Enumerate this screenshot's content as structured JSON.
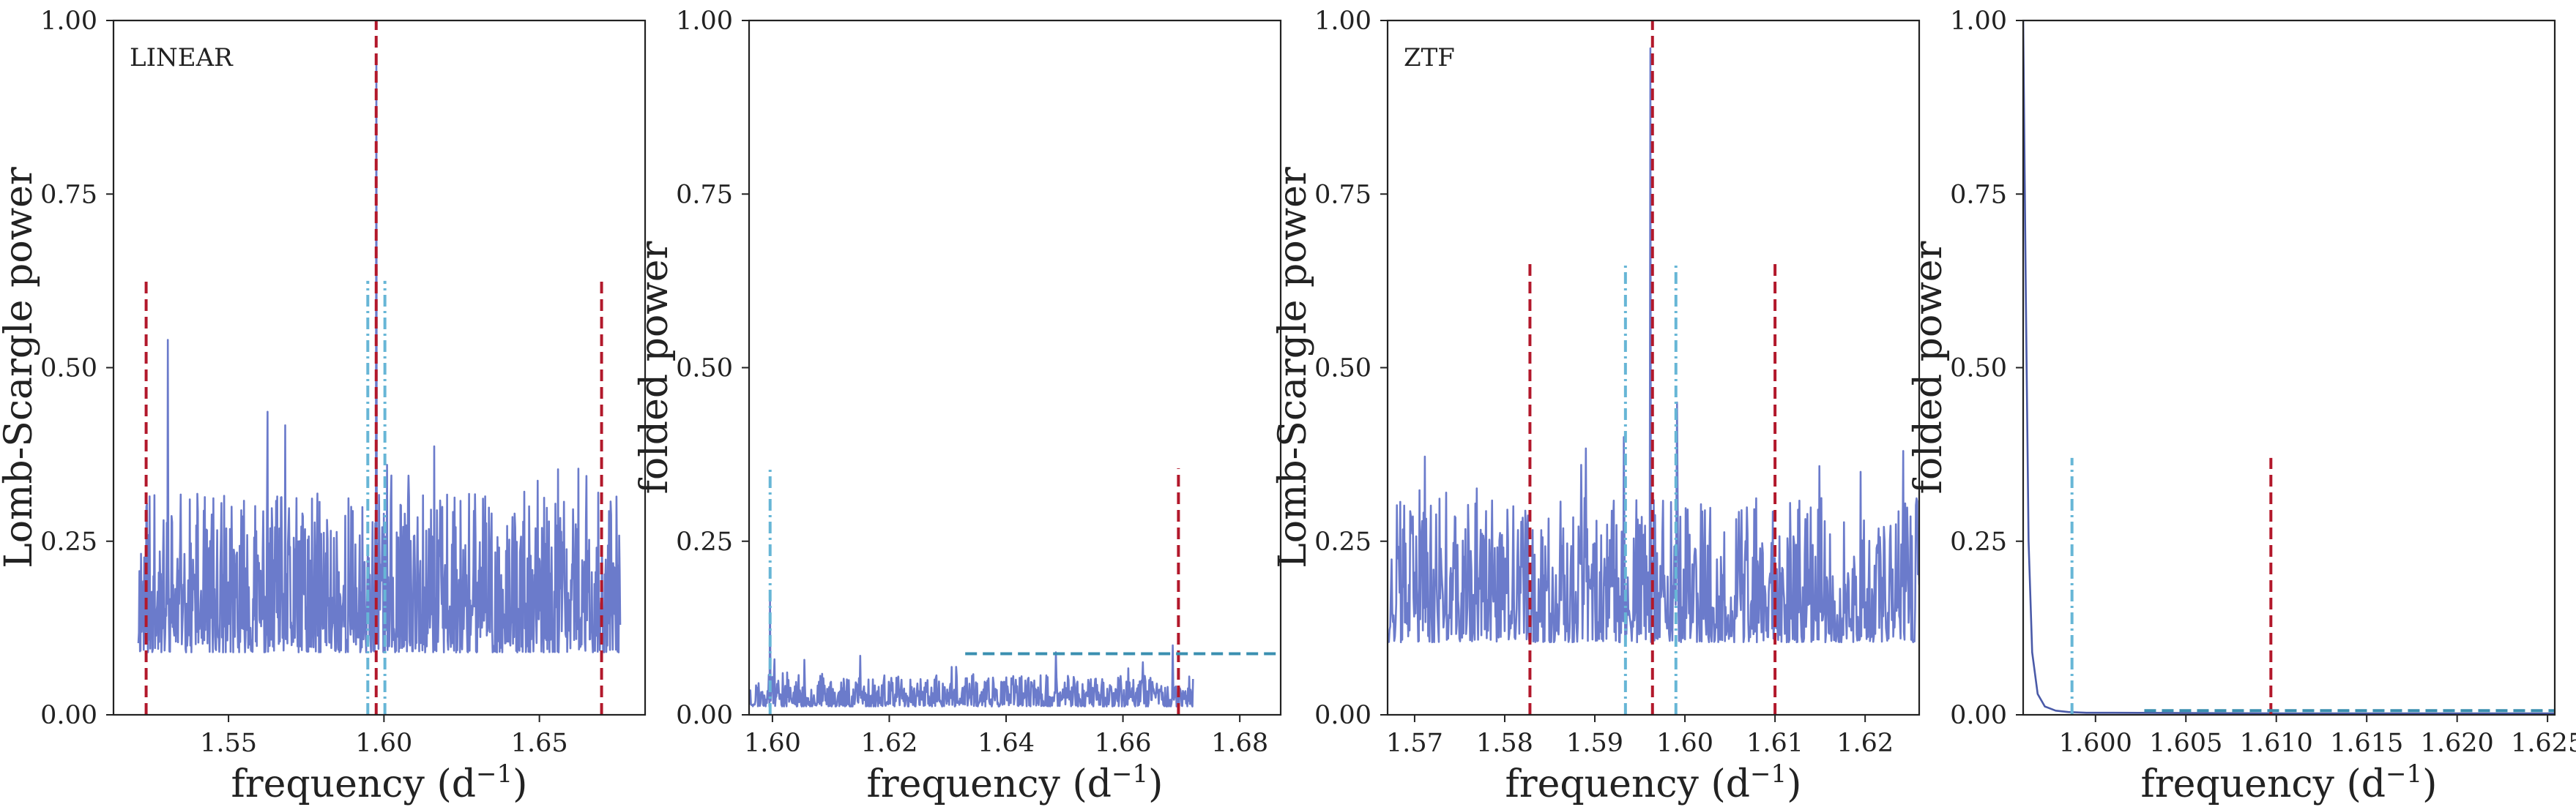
{
  "chart_data": [
    {
      "type": "line",
      "panel_label": "LINEAR",
      "xlabel": "frequency (d",
      "xlabel_sup": "−1",
      "xlabel_end": ")",
      "ylabel": "Lomb-Scargle power",
      "xlim": [
        1.513,
        1.684
      ],
      "ylim": [
        0,
        1
      ],
      "xticks": [
        1.55,
        1.6,
        1.65
      ],
      "xtick_labels": [
        "1.55",
        "1.60",
        "1.65"
      ],
      "yticks": [
        0,
        0.25,
        0.5,
        0.75,
        1.0
      ],
      "ytick_labels": [
        "0.00",
        "0.25",
        "0.50",
        "0.75",
        "1.00"
      ],
      "grid": false,
      "series": [
        {
          "style": "noise",
          "color": "#6b7bcb",
          "x_range": [
            1.521,
            1.676
          ],
          "baseline": 0.14,
          "amplitude": 0.11,
          "n_points": 900,
          "seed": 11,
          "peaks": [
            [
              1.5305,
              0.54
            ],
            [
              1.5975,
              0.95
            ],
            [
              1.5235,
              0.3
            ],
            [
              1.669,
              0.32
            ],
            [
              1.601,
              0.36
            ]
          ]
        }
      ],
      "vlines": [
        {
          "x": 1.5235,
          "y0": 0,
          "y1": 0.625,
          "color": "#b2182b",
          "style": "dashed"
        },
        {
          "x": 1.5975,
          "y0": 0,
          "y1": 1.0,
          "color": "#b2182b",
          "style": "dashed"
        },
        {
          "x": 1.67,
          "y0": 0,
          "y1": 0.625,
          "color": "#b2182b",
          "style": "dashed"
        },
        {
          "x": 1.5948,
          "y0": 0,
          "y1": 0.625,
          "color": "#67b6d6",
          "style": "dashdot"
        },
        {
          "x": 1.6003,
          "y0": 0,
          "y1": 0.625,
          "color": "#67b6d6",
          "style": "dashdot"
        }
      ],
      "hlines": []
    },
    {
      "type": "line",
      "panel_label": "",
      "xlabel": "frequency (d",
      "xlabel_sup": "−1",
      "xlabel_end": ")",
      "ylabel": "folded power",
      "xlim": [
        1.596,
        1.687
      ],
      "ylim": [
        0,
        1
      ],
      "xticks": [
        1.6,
        1.62,
        1.64,
        1.66,
        1.68
      ],
      "xtick_labels": [
        "1.60",
        "1.62",
        "1.64",
        "1.66",
        "1.68"
      ],
      "yticks": [
        0,
        0.25,
        0.5,
        0.75,
        1.0
      ],
      "ytick_labels": [
        "0.00",
        "0.25",
        "0.50",
        "0.75",
        "1.00"
      ],
      "grid": false,
      "series": [
        {
          "style": "noise",
          "color": "#6b7bcb",
          "x_range": [
            1.596,
            1.672
          ],
          "baseline": 0.022,
          "amplitude": 0.022,
          "n_points": 700,
          "seed": 23,
          "peaks": [
            [
              1.5996,
              0.165
            ],
            [
              1.6485,
              0.09
            ],
            [
              1.6685,
              0.1
            ],
            [
              1.615,
              0.085
            ],
            [
              1.6003,
              0.08
            ]
          ]
        }
      ],
      "vlines": [
        {
          "x": 1.5996,
          "y0": 0,
          "y1": 0.355,
          "color": "#67b6d6",
          "style": "dashdot"
        },
        {
          "x": 1.6695,
          "y0": 0,
          "y1": 0.355,
          "color": "#b2182b",
          "style": "dashed"
        }
      ],
      "hlines": [
        {
          "y": 0.088,
          "x0": 1.633,
          "x1": 1.687,
          "color": "#3a8fb0",
          "style": "dashed"
        }
      ]
    },
    {
      "type": "line",
      "panel_label": "ZTF",
      "xlabel": "frequency (d",
      "xlabel_sup": "−1",
      "xlabel_end": ")",
      "ylabel": "Lomb-Scargle power",
      "xlim": [
        1.567,
        1.626
      ],
      "ylim": [
        0,
        1
      ],
      "xticks": [
        1.57,
        1.58,
        1.59,
        1.6,
        1.61,
        1.62
      ],
      "xtick_labels": [
        "1.57",
        "1.58",
        "1.59",
        "1.60",
        "1.61",
        "1.62"
      ],
      "yticks": [
        0,
        0.25,
        0.5,
        0.75,
        1.0
      ],
      "ytick_labels": [
        "0.00",
        "0.25",
        "0.50",
        "0.75",
        "1.00"
      ],
      "grid": false,
      "series": [
        {
          "style": "noise",
          "color": "#6b7bcb",
          "x_range": [
            1.567,
            1.626
          ],
          "baseline": 0.15,
          "amplitude": 0.1,
          "n_points": 800,
          "seed": 37,
          "peaks": [
            [
              1.5962,
              0.96
            ],
            [
              1.5932,
              0.4
            ],
            [
              1.5991,
              0.45
            ],
            [
              1.5885,
              0.36
            ],
            [
              1.6242,
              0.38
            ],
            [
              1.6195,
              0.35
            ],
            [
              1.5735,
              0.32
            ]
          ]
        }
      ],
      "vlines": [
        {
          "x": 1.5828,
          "y0": 0,
          "y1": 0.65,
          "color": "#b2182b",
          "style": "dashed"
        },
        {
          "x": 1.5964,
          "y0": 0,
          "y1": 1.0,
          "color": "#b2182b",
          "style": "dashed"
        },
        {
          "x": 1.61,
          "y0": 0,
          "y1": 0.65,
          "color": "#b2182b",
          "style": "dashed"
        },
        {
          "x": 1.5934,
          "y0": 0,
          "y1": 0.65,
          "color": "#67b6d6",
          "style": "dashdot"
        },
        {
          "x": 1.599,
          "y0": 0,
          "y1": 0.65,
          "color": "#67b6d6",
          "style": "dashdot"
        }
      ],
      "hlines": []
    },
    {
      "type": "line",
      "panel_label": "",
      "xlabel": "frequency (d",
      "xlabel_sup": "−1",
      "xlabel_end": ")",
      "ylabel": "folded power",
      "xlim": [
        1.596,
        1.6254
      ],
      "ylim": [
        0,
        1
      ],
      "xticks": [
        1.6,
        1.605,
        1.61,
        1.615,
        1.62,
        1.625
      ],
      "xtick_labels": [
        "1.600",
        "1.605",
        "1.610",
        "1.615",
        "1.620",
        "1.625"
      ],
      "yticks": [
        0,
        0.25,
        0.5,
        0.75,
        1.0
      ],
      "ytick_labels": [
        "0.00",
        "0.25",
        "0.50",
        "0.75",
        "1.00"
      ],
      "grid": false,
      "series": [
        {
          "style": "decay",
          "color": "#4a5aa8",
          "x": [
            1.596,
            1.59615,
            1.5963,
            1.5965,
            1.5968,
            1.5972,
            1.5978,
            1.5985,
            1.5995,
            1.601,
            1.61,
            1.6254
          ],
          "y": [
            1.0,
            0.6,
            0.25,
            0.09,
            0.03,
            0.012,
            0.006,
            0.004,
            0.003,
            0.003,
            0.002,
            0.002
          ]
        }
      ],
      "vlines": [
        {
          "x": 1.5987,
          "y0": 0,
          "y1": 0.37,
          "color": "#67b6d6",
          "style": "dashdot"
        },
        {
          "x": 1.6097,
          "y0": 0,
          "y1": 0.37,
          "color": "#b2182b",
          "style": "dashed"
        }
      ],
      "hlines": [
        {
          "y": 0.006,
          "x0": 1.6027,
          "x1": 1.6254,
          "color": "#3a8fb0",
          "style": "dashed"
        }
      ]
    }
  ]
}
